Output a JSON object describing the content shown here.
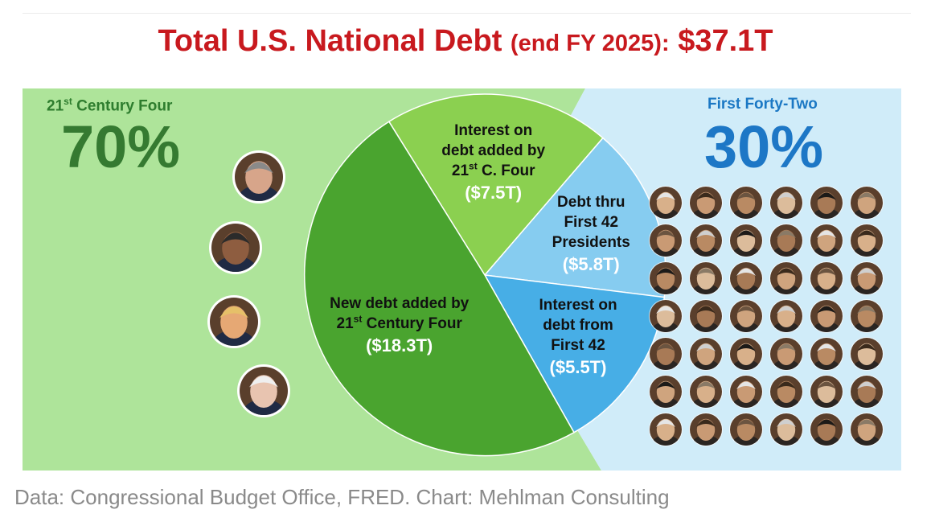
{
  "title": {
    "main": "Total U.S. National Debt",
    "paren": "(end FY 2025):",
    "total": "$37.1T"
  },
  "left_group": {
    "label_prefix": "21",
    "label_sup": "st",
    "label_suffix": "Century Four",
    "percent": "70%",
    "portraits": [
      "George W. Bush",
      "Barack Obama",
      "Donald Trump",
      "Joe Biden"
    ]
  },
  "right_group": {
    "label": "First Forty-Two",
    "percent": "30%",
    "portrait_rows": 7,
    "portrait_cols": 6
  },
  "footer": "Data: Congressional Budget Office, FRED. Chart: Mehlman Consulting",
  "colors": {
    "title_red": "#c8191e",
    "left_bg": "#aee49a",
    "right_bg": "#d0ecf9",
    "new_debt_21": "#4aa42f",
    "interest_21": "#8bd050",
    "debt_first42": "#86ccf0",
    "interest_first42": "#47aee6"
  },
  "chart_data": {
    "type": "pie",
    "title": "Total U.S. National Debt (end FY 2025): $37.1T",
    "unit": "$T",
    "total": 37.1,
    "slices": [
      {
        "key": "new21",
        "lines": [
          "New debt added by",
          "21|st|Century Four"
        ],
        "amount_label": "($18.3T)",
        "value": 18.3,
        "color": "#4aa42f"
      },
      {
        "key": "int21",
        "lines": [
          "Interest on",
          "debt added by",
          "21|st|C. Four"
        ],
        "amount_label": "($7.5T)",
        "value": 7.5,
        "color": "#8bd050"
      },
      {
        "key": "debt42",
        "lines": [
          "Debt thru",
          "First 42",
          "Presidents"
        ],
        "amount_label": "($5.8T)",
        "value": 5.8,
        "color": "#86ccf0"
      },
      {
        "key": "int42",
        "lines": [
          "Interest on",
          "debt from",
          "First 42"
        ],
        "amount_label": "($5.5T)",
        "value": 5.5,
        "color": "#47aee6"
      }
    ],
    "groups": [
      {
        "name": "21st Century Four",
        "percent": 70
      },
      {
        "name": "First Forty-Two",
        "percent": 30
      }
    ]
  }
}
